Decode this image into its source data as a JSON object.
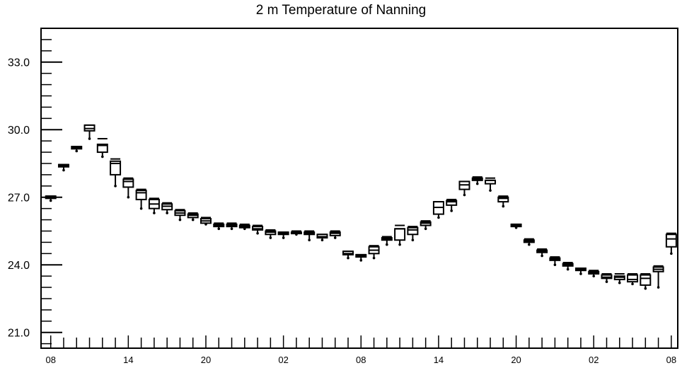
{
  "chart_data": {
    "type": "box",
    "title": "2 m Temperature of Nanning",
    "xlabel": "",
    "ylabel": "",
    "ylim": [
      20.3,
      34.5
    ],
    "yticks": [
      21.0,
      24.0,
      27.0,
      30.0,
      33.0
    ],
    "ytick_labels": [
      "21.0",
      "24.0",
      "27.0",
      "30.0",
      "33.0"
    ],
    "y_minor_step": 0.5,
    "xlim": [
      -0.75,
      48.5
    ],
    "xticks": [
      0,
      6,
      12,
      18,
      24,
      30,
      36,
      42,
      48
    ],
    "xtick_labels": [
      "08",
      "14",
      "20",
      "02",
      "08",
      "14",
      "20",
      "02",
      "08"
    ],
    "x_unit": "hour",
    "grid": false,
    "colors": {
      "box": "#000000",
      "axis": "#000000"
    },
    "series": [
      {
        "values": [
          {
            "x": 0,
            "min": 26.85,
            "q1": 26.95,
            "median": 27.0,
            "q3": 27.05,
            "max": 27.05
          },
          {
            "x": 1,
            "min": 28.2,
            "q1": 28.35,
            "median": 28.4,
            "q3": 28.45,
            "max": 28.45
          },
          {
            "x": 2,
            "min": 29.05,
            "q1": 29.15,
            "median": 29.2,
            "q3": 29.25,
            "max": 29.25
          },
          {
            "x": 3,
            "min": 29.6,
            "q1": 29.95,
            "median": 30.05,
            "q3": 30.2,
            "max": 30.2
          },
          {
            "x": 4,
            "min": 28.8,
            "q1": 29.0,
            "median": 29.3,
            "q3": 29.35,
            "max": 29.6
          },
          {
            "x": 5,
            "min": 27.5,
            "q1": 28.0,
            "median": 28.5,
            "q3": 28.6,
            "max": 28.7
          },
          {
            "x": 6,
            "min": 27.0,
            "q1": 27.45,
            "median": 27.7,
            "q3": 27.8,
            "max": 27.85
          },
          {
            "x": 7,
            "min": 26.5,
            "q1": 26.9,
            "median": 27.2,
            "q3": 27.3,
            "max": 27.35
          },
          {
            "x": 8,
            "min": 26.3,
            "q1": 26.5,
            "median": 26.7,
            "q3": 26.9,
            "max": 26.95
          },
          {
            "x": 9,
            "min": 26.3,
            "q1": 26.45,
            "median": 26.6,
            "q3": 26.7,
            "max": 26.75
          },
          {
            "x": 10,
            "min": 26.0,
            "q1": 26.2,
            "median": 26.3,
            "q3": 26.4,
            "max": 26.45
          },
          {
            "x": 11,
            "min": 26.0,
            "q1": 26.1,
            "median": 26.2,
            "q3": 26.25,
            "max": 26.3
          },
          {
            "x": 12,
            "min": 25.8,
            "q1": 25.85,
            "median": 25.95,
            "q3": 26.05,
            "max": 26.1
          },
          {
            "x": 13,
            "min": 25.6,
            "q1": 25.7,
            "median": 25.75,
            "q3": 25.8,
            "max": 25.85
          },
          {
            "x": 14,
            "min": 25.6,
            "q1": 25.7,
            "median": 25.75,
            "q3": 25.8,
            "max": 25.85
          },
          {
            "x": 15,
            "min": 25.6,
            "q1": 25.65,
            "median": 25.7,
            "q3": 25.75,
            "max": 25.8
          },
          {
            "x": 16,
            "min": 25.4,
            "q1": 25.55,
            "median": 25.6,
            "q3": 25.7,
            "max": 25.75
          },
          {
            "x": 17,
            "min": 25.2,
            "q1": 25.35,
            "median": 25.45,
            "q3": 25.5,
            "max": 25.55
          },
          {
            "x": 18,
            "min": 25.2,
            "q1": 25.35,
            "median": 25.4,
            "q3": 25.45,
            "max": 25.45
          },
          {
            "x": 19,
            "min": 25.35,
            "q1": 25.4,
            "median": 25.45,
            "q3": 25.45,
            "max": 25.5
          },
          {
            "x": 20,
            "min": 25.1,
            "q1": 25.35,
            "median": 25.4,
            "q3": 25.45,
            "max": 25.5
          },
          {
            "x": 21,
            "min": 25.1,
            "q1": 25.2,
            "median": 25.25,
            "q3": 25.35,
            "max": 25.35
          },
          {
            "x": 22,
            "min": 25.2,
            "q1": 25.3,
            "median": 25.4,
            "q3": 25.45,
            "max": 25.5
          },
          {
            "x": 23,
            "min": 24.3,
            "q1": 24.45,
            "median": 24.5,
            "q3": 24.6,
            "max": 24.6
          },
          {
            "x": 24,
            "min": 24.2,
            "q1": 24.35,
            "median": 24.4,
            "q3": 24.45,
            "max": 24.45
          },
          {
            "x": 25,
            "min": 24.3,
            "q1": 24.5,
            "median": 24.65,
            "q3": 24.8,
            "max": 24.85
          },
          {
            "x": 26,
            "min": 24.9,
            "q1": 25.1,
            "median": 25.15,
            "q3": 25.2,
            "max": 25.25
          },
          {
            "x": 27,
            "min": 24.9,
            "q1": 25.1,
            "median": 25.6,
            "q3": 25.6,
            "max": 25.75
          },
          {
            "x": 28,
            "min": 25.1,
            "q1": 25.35,
            "median": 25.55,
            "q3": 25.65,
            "max": 25.7
          },
          {
            "x": 29,
            "min": 25.6,
            "q1": 25.75,
            "median": 25.85,
            "q3": 25.9,
            "max": 25.95
          },
          {
            "x": 30,
            "min": 26.1,
            "q1": 26.25,
            "median": 26.55,
            "q3": 26.8,
            "max": 26.8
          },
          {
            "x": 31,
            "min": 26.4,
            "q1": 26.65,
            "median": 26.8,
            "q3": 26.85,
            "max": 26.9
          },
          {
            "x": 32,
            "min": 27.1,
            "q1": 27.35,
            "median": 27.55,
            "q3": 27.7,
            "max": 27.7
          },
          {
            "x": 33,
            "min": 27.6,
            "q1": 27.75,
            "median": 27.8,
            "q3": 27.85,
            "max": 27.9
          },
          {
            "x": 34,
            "min": 27.3,
            "q1": 27.6,
            "median": 27.75,
            "q3": 27.75,
            "max": 27.85
          },
          {
            "x": 35,
            "min": 26.6,
            "q1": 26.8,
            "median": 26.95,
            "q3": 27.0,
            "max": 27.05
          },
          {
            "x": 36,
            "min": 25.65,
            "q1": 25.7,
            "median": 25.75,
            "q3": 25.8,
            "max": 25.8
          },
          {
            "x": 37,
            "min": 24.9,
            "q1": 25.0,
            "median": 25.05,
            "q3": 25.1,
            "max": 25.15
          },
          {
            "x": 38,
            "min": 24.4,
            "q1": 24.55,
            "median": 24.6,
            "q3": 24.65,
            "max": 24.7
          },
          {
            "x": 39,
            "min": 24.0,
            "q1": 24.2,
            "median": 24.25,
            "q3": 24.3,
            "max": 24.35
          },
          {
            "x": 40,
            "min": 23.8,
            "q1": 23.95,
            "median": 24.0,
            "q3": 24.05,
            "max": 24.1
          },
          {
            "x": 41,
            "min": 23.6,
            "q1": 23.75,
            "median": 23.8,
            "q3": 23.85,
            "max": 23.85
          },
          {
            "x": 42,
            "min": 23.5,
            "q1": 23.6,
            "median": 23.65,
            "q3": 23.7,
            "max": 23.75
          },
          {
            "x": 43,
            "min": 23.25,
            "q1": 23.4,
            "median": 23.45,
            "q3": 23.55,
            "max": 23.6
          },
          {
            "x": 44,
            "min": 23.2,
            "q1": 23.35,
            "median": 23.45,
            "q3": 23.5,
            "max": 23.6
          },
          {
            "x": 45,
            "min": 23.15,
            "q1": 23.25,
            "median": 23.35,
            "q3": 23.55,
            "max": 23.6
          },
          {
            "x": 46,
            "min": 22.95,
            "q1": 23.1,
            "median": 23.4,
            "q3": 23.55,
            "max": 23.6
          },
          {
            "x": 47,
            "min": 23.0,
            "q1": 23.7,
            "median": 23.8,
            "q3": 23.9,
            "max": 23.95
          },
          {
            "x": 48,
            "min": 24.5,
            "q1": 24.8,
            "median": 25.15,
            "q3": 25.35,
            "max": 25.4
          }
        ]
      }
    ]
  }
}
